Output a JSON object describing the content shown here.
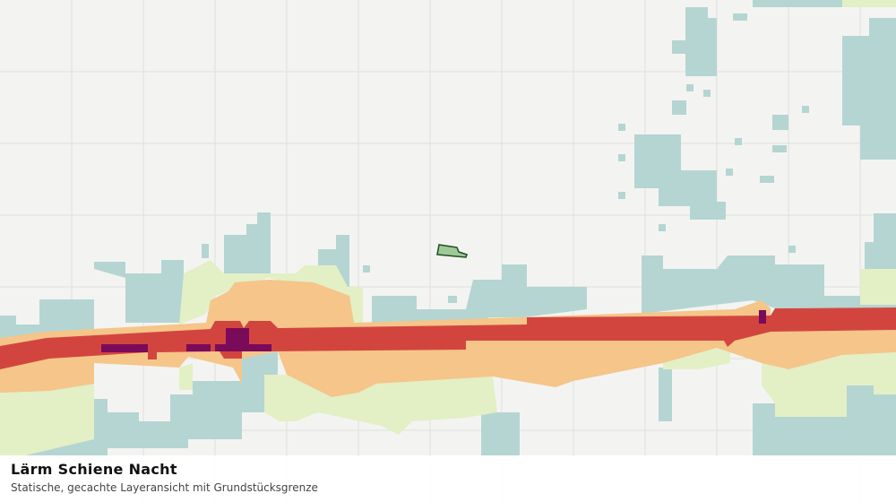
{
  "caption": {
    "title": "Lärm Schiene Nacht",
    "subtitle": "Statische, gecachte Layeransicht mit Grundstücksgrenze"
  }
}
